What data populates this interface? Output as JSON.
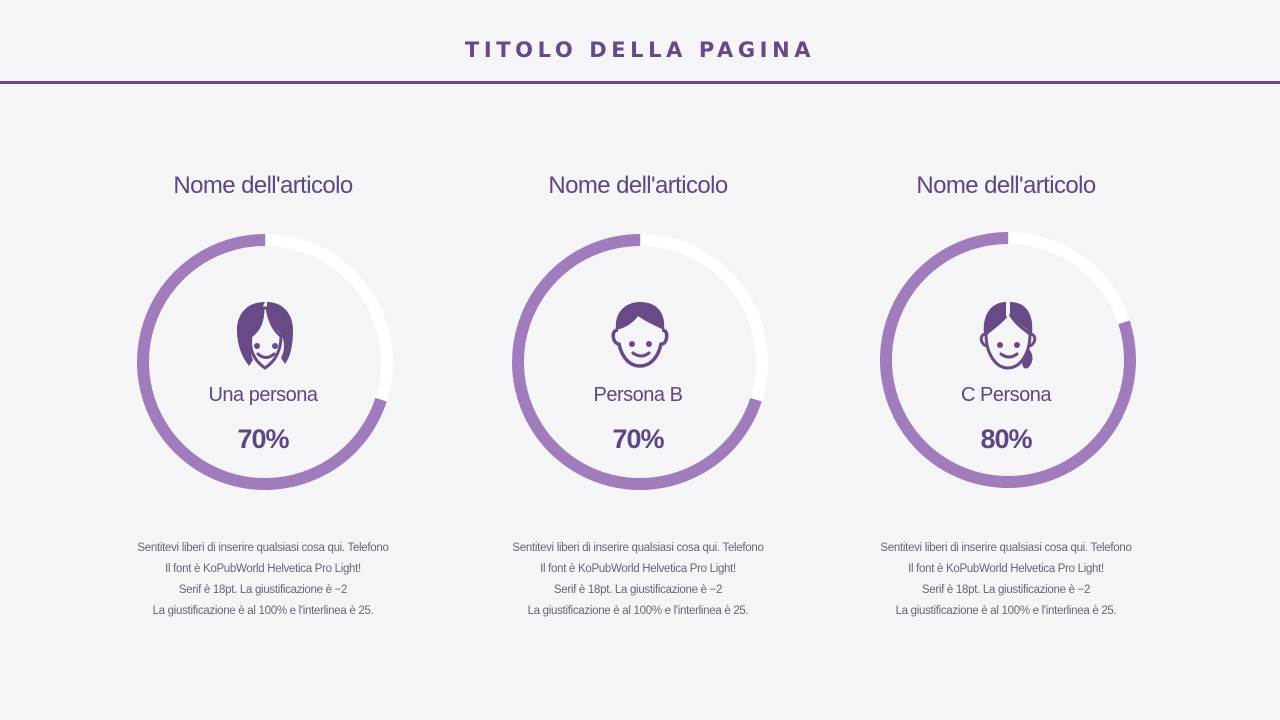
{
  "header": {
    "title": "TITOLO DELLA PAGINA"
  },
  "colors": {
    "accent": "#6a4a84",
    "ring": "#a07cbd",
    "ring_track": "#ffffff",
    "text": "#5e4782",
    "background": "#f5f4f6"
  },
  "cards": [
    {
      "title": "Nome dell'articolo",
      "icon": "woman-bob-hair-icon",
      "name": "Una persona",
      "percent_label": "70%",
      "percent": 70,
      "description": [
        "Sentitevi liberi di inserire qualsiasi cosa qui. Telefono",
        "Il font è KoPubWorld Helvetica Pro Light!",
        "Serif è 18pt. La giustificazione è −2",
        "La giustificazione è al 100% e l'interlinea è 25."
      ]
    },
    {
      "title": "Nome dell'articolo",
      "icon": "man-face-icon",
      "name": "Persona B",
      "percent_label": "70%",
      "percent": 70,
      "description": [
        "Sentitevi liberi di inserire qualsiasi cosa qui. Telefono",
        "Il font è KoPubWorld Helvetica Pro Light!",
        "Serif è 18pt. La giustificazione è −2",
        "La giustificazione è al 100% e l'interlinea è 25."
      ]
    },
    {
      "title": "Nome dell'articolo",
      "icon": "woman-ponytail-icon",
      "name": "C Persona",
      "percent_label": "80%",
      "percent": 80,
      "description": [
        "Sentitevi liberi di inserire qualsiasi cosa qui. Telefono",
        "Il font è KoPubWorld Helvetica Pro Light!",
        "Serif è 18pt. La giustificazione è −2",
        "La giustificazione è al 100% e l'interlinea è 25."
      ]
    }
  ]
}
